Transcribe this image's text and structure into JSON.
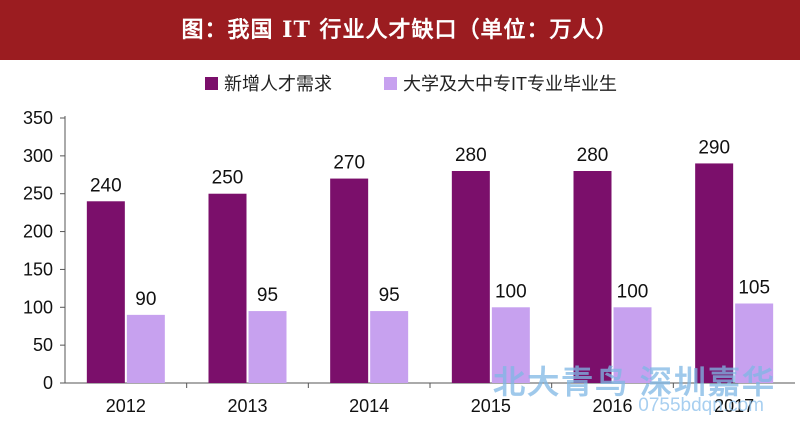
{
  "title": "图：我国 IT 行业人才缺口（单位：万人）",
  "legend": [
    {
      "label": "新增人才需求",
      "color": "#7b0f6b"
    },
    {
      "label": "大学及大中专IT专业毕业生",
      "color": "#c7a1ef"
    }
  ],
  "watermark": {
    "main": "北大青鸟 深圳嘉华",
    "sub": "0755bdqn.com"
  },
  "chart_data": {
    "type": "bar",
    "title": "图：我国 IT 行业人才缺口（单位：万人）",
    "categories": [
      "2012",
      "2013",
      "2014",
      "2015",
      "2016",
      "2017"
    ],
    "series": [
      {
        "name": "新增人才需求",
        "values": [
          240,
          250,
          270,
          280,
          280,
          290
        ],
        "color": "#7b0f6b"
      },
      {
        "name": "大学及大中专IT专业毕业生",
        "values": [
          90,
          95,
          95,
          100,
          100,
          105
        ],
        "color": "#c7a1ef"
      }
    ],
    "ylim": [
      0,
      350
    ],
    "yticks": [
      0,
      50,
      100,
      150,
      200,
      250,
      300,
      350
    ],
    "grid": false,
    "legend_position": "top"
  }
}
